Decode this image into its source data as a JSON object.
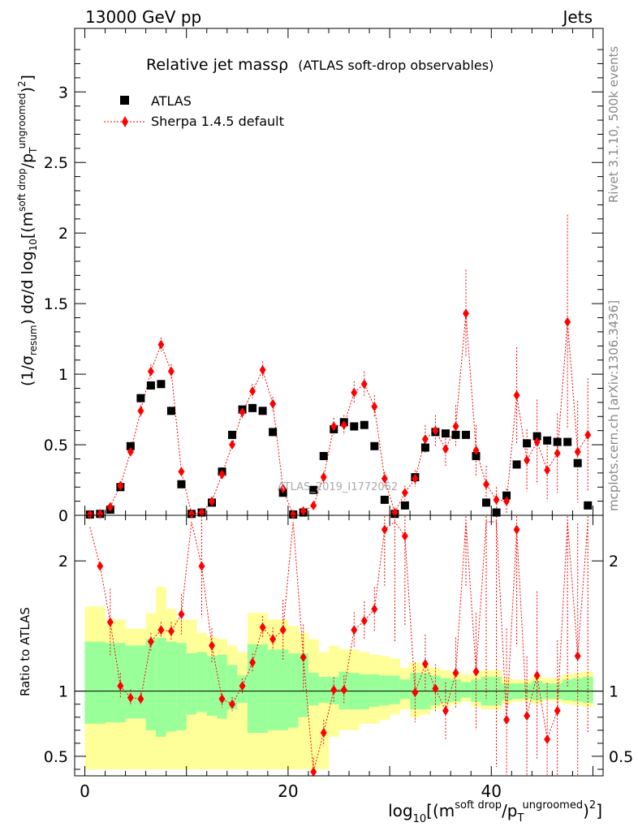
{
  "header": {
    "energy": "13000 GeV pp",
    "category": "Jets"
  },
  "title": {
    "main": "Relative jet massρ",
    "sub": "(ATLAS soft-drop observables)"
  },
  "legend": [
    {
      "label": "ATLAS",
      "marker": "square",
      "color": "#000000"
    },
    {
      "label": "Sherpa 1.4.5 default",
      "marker": "diamond",
      "color": "#ff0000"
    }
  ],
  "watermark": "ATLAS_2019_I1772062",
  "side_labels": {
    "rivet": "Rivet 3.1.10,  500k events",
    "mcplots": "mcplots.cern.ch [arXiv:1306.3436]"
  },
  "axes": {
    "main_ylabel": "(1/σresum) dσ/d log10[(m^soft drop/pT^ungroomed)^2]",
    "ratio_ylabel": "Ratio to ATLAS",
    "xlabel": "log10[(m^soft drop/pT^ungroomed)^2]",
    "x_ticks": [
      "0",
      "20",
      "40"
    ],
    "main_y_ticks": [
      "0",
      "0.5",
      "1",
      "1.5",
      "2",
      "2.5",
      "3"
    ],
    "ratio_y_ticks": [
      "0.5",
      "1",
      "2"
    ]
  },
  "chart_data": {
    "type": "scatter",
    "xlim": [
      -1,
      51
    ],
    "main_ylim": [
      0,
      3.45
    ],
    "ratio_ylim": [
      0.35,
      2.35
    ],
    "x": [
      0.5,
      1.5,
      2.5,
      3.5,
      4.5,
      5.5,
      6.5,
      7.5,
      8.5,
      9.5,
      10.5,
      11.5,
      12.5,
      13.5,
      14.5,
      15.5,
      16.5,
      17.5,
      18.5,
      19.5,
      20.5,
      21.5,
      22.5,
      23.5,
      24.5,
      25.5,
      26.5,
      27.5,
      28.5,
      29.5,
      30.5,
      31.5,
      32.5,
      33.5,
      34.5,
      35.5,
      36.5,
      37.5,
      38.5,
      39.5,
      40.5,
      41.5,
      42.5,
      43.5,
      44.5,
      45.5,
      46.5,
      47.5,
      48.5,
      49.5
    ],
    "series": [
      {
        "name": "ATLAS",
        "values": [
          0.0,
          0.01,
          0.04,
          0.2,
          0.49,
          0.83,
          0.92,
          0.93,
          0.74,
          0.22,
          0.01,
          0.02,
          0.09,
          0.31,
          0.57,
          0.75,
          0.76,
          0.74,
          0.59,
          0.16,
          0.0,
          0.02,
          0.18,
          0.42,
          0.61,
          0.66,
          0.63,
          0.64,
          0.49,
          0.11,
          0.01,
          0.07,
          0.27,
          0.48,
          0.59,
          0.58,
          0.57,
          0.57,
          0.42,
          0.09,
          0.02,
          0.14,
          0.36,
          0.51,
          0.56,
          0.53,
          0.52,
          0.52,
          0.37,
          0.07
        ]
      },
      {
        "name": "Sherpa 1.4.5 default",
        "values": [
          0.0,
          0.01,
          0.06,
          0.21,
          0.45,
          0.74,
          1.02,
          1.21,
          1.02,
          0.31,
          0.01,
          0.02,
          0.1,
          0.29,
          0.5,
          0.73,
          0.88,
          1.03,
          0.79,
          0.19,
          0.0,
          0.03,
          0.07,
          0.27,
          0.63,
          0.64,
          0.87,
          0.93,
          0.77,
          0.26,
          0.02,
          0.16,
          0.26,
          0.54,
          0.6,
          0.47,
          0.63,
          1.43,
          0.46,
          0.22,
          0.11,
          0.1,
          0.85,
          0.39,
          0.52,
          0.32,
          0.44,
          1.37,
          0.45,
          0.57
        ],
        "errors": [
          0.0,
          0.0,
          0.01,
          0.02,
          0.03,
          0.04,
          0.05,
          0.05,
          0.05,
          0.03,
          0.0,
          0.01,
          0.01,
          0.02,
          0.03,
          0.04,
          0.05,
          0.06,
          0.05,
          0.03,
          0.01,
          0.01,
          0.02,
          0.04,
          0.06,
          0.07,
          0.08,
          0.09,
          0.08,
          0.05,
          0.02,
          0.05,
          0.06,
          0.1,
          0.11,
          0.12,
          0.15,
          0.31,
          0.18,
          0.13,
          0.09,
          0.09,
          0.34,
          0.22,
          0.3,
          0.22,
          0.28,
          0.76,
          0.36,
          0.4
        ],
        "ratio": [
          2.26,
          1.96,
          1.53,
          1.04,
          0.95,
          0.94,
          1.38,
          1.47,
          1.46,
          1.59,
          2.3,
          1.96,
          1.35,
          0.94,
          0.9,
          1.04,
          1.22,
          1.49,
          1.4,
          1.47,
          2.3,
          1.26,
          0.38,
          0.68,
          1.01,
          1.01,
          1.47,
          1.54,
          1.63,
          2.24,
          2.3,
          2.19,
          0.99,
          1.21,
          1.02,
          0.85,
          1.14,
          2.3,
          1.15,
          2.3,
          2.3,
          0.78,
          2.24,
          0.81,
          1.12,
          0.63,
          0.85,
          2.3,
          1.27,
          2.3
        ]
      }
    ],
    "uncertainty_band": {
      "inner_lo": [
        0.75,
        0.75,
        0.76,
        0.76,
        0.79,
        0.79,
        0.7,
        0.65,
        0.69,
        0.7,
        0.82,
        0.84,
        0.81,
        0.79,
        0.86,
        0.91,
        0.68,
        0.68,
        0.7,
        0.7,
        0.72,
        0.8,
        0.89,
        0.91,
        0.9,
        0.86,
        0.86,
        0.86,
        0.88,
        0.89,
        0.9,
        0.94,
        0.86,
        0.86,
        0.89,
        0.91,
        0.92,
        0.95,
        0.92,
        0.89,
        0.89,
        0.93,
        0.94,
        0.94,
        0.93,
        0.94,
        0.94,
        0.93,
        0.92,
        0.91
      ],
      "inner_hi": [
        1.38,
        1.38,
        1.37,
        1.37,
        1.35,
        1.35,
        1.4,
        1.41,
        1.38,
        1.37,
        1.29,
        1.3,
        1.27,
        1.28,
        1.2,
        1.12,
        1.36,
        1.36,
        1.32,
        1.32,
        1.29,
        1.29,
        1.14,
        1.11,
        1.11,
        1.15,
        1.14,
        1.13,
        1.13,
        1.12,
        1.12,
        1.09,
        1.14,
        1.14,
        1.12,
        1.1,
        1.09,
        1.07,
        1.09,
        1.11,
        1.11,
        1.06,
        1.06,
        1.06,
        1.08,
        1.06,
        1.06,
        1.09,
        1.1,
        1.11
      ],
      "outer_lo": [
        0.4,
        0.4,
        0.4,
        0.4,
        0.4,
        0.4,
        0.4,
        0.4,
        0.4,
        0.4,
        0.4,
        0.4,
        0.4,
        0.4,
        0.4,
        0.4,
        0.4,
        0.4,
        0.4,
        0.4,
        0.4,
        0.4,
        0.4,
        0.4,
        0.65,
        0.7,
        0.7,
        0.75,
        0.75,
        0.78,
        0.82,
        0.86,
        0.8,
        0.82,
        0.86,
        0.88,
        0.9,
        0.92,
        0.88,
        0.86,
        0.86,
        0.9,
        0.92,
        0.92,
        0.9,
        0.93,
        0.92,
        0.9,
        0.89,
        0.88
      ],
      "outer_hi": [
        1.65,
        1.65,
        1.55,
        1.55,
        1.48,
        1.48,
        1.6,
        1.8,
        1.63,
        1.55,
        1.55,
        1.45,
        1.42,
        1.4,
        1.35,
        1.3,
        1.6,
        1.6,
        1.55,
        1.55,
        1.5,
        1.45,
        1.4,
        1.3,
        1.35,
        1.32,
        1.32,
        1.3,
        1.28,
        1.27,
        1.25,
        1.18,
        1.22,
        1.2,
        1.18,
        1.16,
        1.14,
        1.13,
        1.14,
        1.16,
        1.16,
        1.1,
        1.09,
        1.09,
        1.12,
        1.1,
        1.1,
        1.13,
        1.14,
        1.15
      ]
    }
  }
}
